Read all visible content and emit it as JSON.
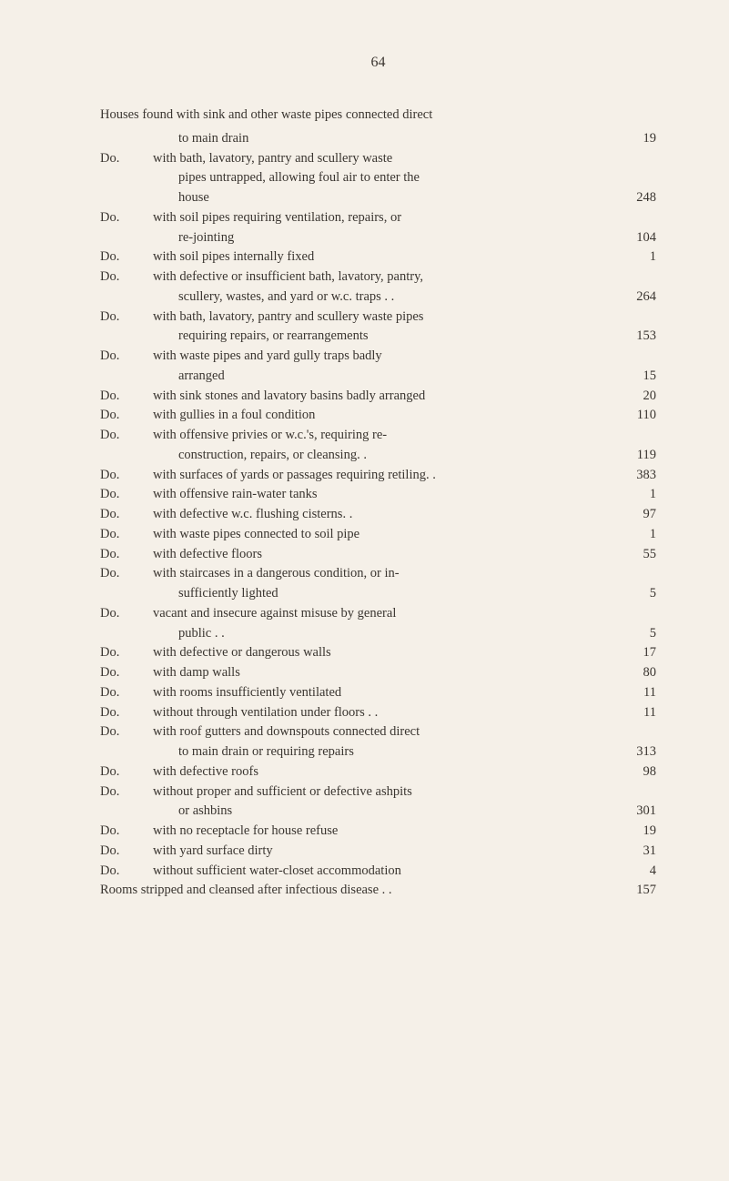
{
  "page_number": "64",
  "intro": "Houses found with sink and other waste pipes connected direct",
  "intro_continuation": "to main drain",
  "intro_value": "19",
  "entries": [
    {
      "label": "Do.",
      "lines": [
        "with bath, lavatory, pantry and scullery waste",
        "pipes untrapped, allowing foul air to enter the",
        "house"
      ],
      "value": "248"
    },
    {
      "label": "Do.",
      "lines": [
        "with soil pipes requiring ventilation, repairs, or",
        "re-jointing"
      ],
      "value": "104"
    },
    {
      "label": "Do.",
      "lines": [
        "with soil pipes internally fixed"
      ],
      "value": "1"
    },
    {
      "label": "Do.",
      "lines": [
        "with defective or insufficient bath, lavatory, pantry,",
        "scullery, wastes, and yard or w.c. traps . ."
      ],
      "value": "264"
    },
    {
      "label": "Do.",
      "lines": [
        "with bath, lavatory, pantry and scullery waste pipes",
        "requiring repairs, or rearrangements"
      ],
      "value": "153"
    },
    {
      "label": "Do.",
      "lines": [
        "with waste pipes and yard gully traps badly",
        "arranged"
      ],
      "value": "15"
    },
    {
      "label": "Do.",
      "lines": [
        "with sink stones and lavatory basins badly arranged"
      ],
      "value": "20"
    },
    {
      "label": "Do.",
      "lines": [
        "with gullies in a foul condition"
      ],
      "value": "110"
    },
    {
      "label": "Do.",
      "lines": [
        "with offensive privies or w.c.'s, requiring re-",
        "construction, repairs, or cleansing. ."
      ],
      "value": "119"
    },
    {
      "label": "Do.",
      "lines": [
        "with surfaces of yards or passages requiring retiling. ."
      ],
      "value": "383"
    },
    {
      "label": "Do.",
      "lines": [
        "with offensive rain-water tanks"
      ],
      "value": "1"
    },
    {
      "label": "Do.",
      "lines": [
        "with defective w.c. flushing cisterns. ."
      ],
      "value": "97"
    },
    {
      "label": "Do.",
      "lines": [
        "with waste pipes connected to soil pipe"
      ],
      "value": "1"
    },
    {
      "label": "Do.",
      "lines": [
        "with defective floors"
      ],
      "value": "55"
    },
    {
      "label": "Do.",
      "lines": [
        "with staircases in a dangerous condition, or in-",
        "sufficiently lighted"
      ],
      "value": "5"
    },
    {
      "label": "Do.",
      "lines": [
        "vacant and insecure against misuse by general",
        "public . ."
      ],
      "value": "5"
    },
    {
      "label": "Do.",
      "lines": [
        "with defective or dangerous walls"
      ],
      "value": "17"
    },
    {
      "label": "Do.",
      "lines": [
        "with damp walls"
      ],
      "value": "80"
    },
    {
      "label": "Do.",
      "lines": [
        "with rooms insufficiently ventilated"
      ],
      "value": "11"
    },
    {
      "label": "Do.",
      "lines": [
        "without through ventilation under floors . ."
      ],
      "value": "11"
    },
    {
      "label": "Do.",
      "lines": [
        "with roof gutters and downspouts connected direct",
        "to main drain or requiring repairs"
      ],
      "value": "313"
    },
    {
      "label": "Do.",
      "lines": [
        "with defective roofs"
      ],
      "value": "98"
    },
    {
      "label": "Do.",
      "lines": [
        "without proper and sufficient or defective ashpits",
        "or ashbins"
      ],
      "value": "301"
    },
    {
      "label": "Do.",
      "lines": [
        "with no receptacle for house refuse"
      ],
      "value": "19"
    },
    {
      "label": "Do.",
      "lines": [
        "with yard surface dirty"
      ],
      "value": "31"
    },
    {
      "label": "Do.",
      "lines": [
        "without sufficient water-closet accommodation"
      ],
      "value": "4"
    }
  ],
  "final_line": "Rooms stripped and cleansed after infectious disease . .",
  "final_value": "157"
}
